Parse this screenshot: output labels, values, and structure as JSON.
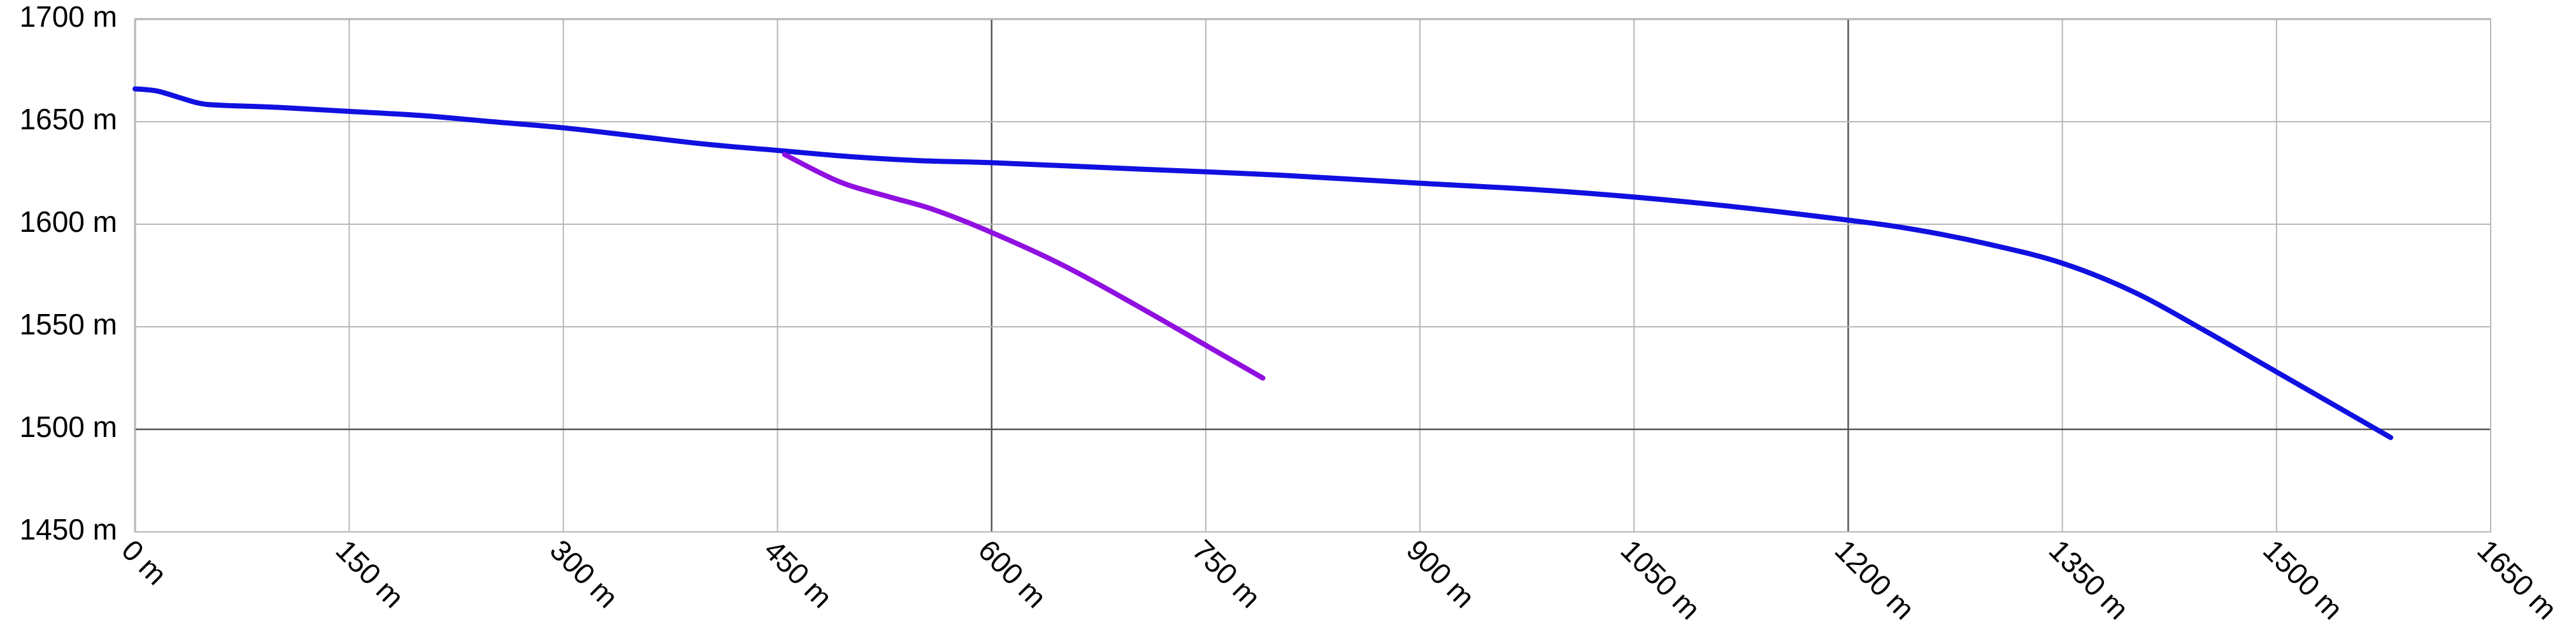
{
  "chart_data": {
    "type": "line",
    "title": "",
    "xlabel": "",
    "ylabel": "",
    "xlim": [
      0,
      1650
    ],
    "ylim": [
      1450,
      1700
    ],
    "grid": true,
    "legend": "none",
    "x_ticks": [
      0,
      150,
      300,
      450,
      600,
      750,
      900,
      1050,
      1200,
      1350,
      1500,
      1650
    ],
    "x_tick_labels": [
      "0 m",
      "150 m",
      "300 m",
      "450 m",
      "600 m",
      "750 m",
      "900 m",
      "1050 m",
      "1200 m",
      "1350 m",
      "1500 m",
      "1650 m"
    ],
    "y_ticks": [
      1450,
      1500,
      1550,
      1600,
      1650,
      1700
    ],
    "y_tick_labels": [
      "1450 m",
      "1500 m",
      "1550 m",
      "1600 m",
      "1650 m",
      "1700 m"
    ],
    "series": [
      {
        "color": "#1010e0",
        "points": [
          [
            0,
            1666
          ],
          [
            15,
            1665
          ],
          [
            30,
            1662
          ],
          [
            45,
            1659
          ],
          [
            60,
            1658
          ],
          [
            100,
            1657
          ],
          [
            150,
            1655
          ],
          [
            200,
            1653
          ],
          [
            250,
            1650
          ],
          [
            300,
            1647
          ],
          [
            350,
            1643
          ],
          [
            400,
            1639
          ],
          [
            450,
            1636
          ],
          [
            500,
            1633
          ],
          [
            550,
            1631
          ],
          [
            600,
            1630
          ],
          [
            700,
            1627
          ],
          [
            800,
            1624
          ],
          [
            900,
            1620
          ],
          [
            1000,
            1616
          ],
          [
            1100,
            1610
          ],
          [
            1200,
            1602
          ],
          [
            1250,
            1597
          ],
          [
            1300,
            1590
          ],
          [
            1350,
            1581
          ],
          [
            1400,
            1567
          ],
          [
            1450,
            1548
          ],
          [
            1500,
            1528
          ],
          [
            1550,
            1508
          ],
          [
            1580,
            1496
          ]
        ]
      },
      {
        "color": "#9010e0",
        "points": [
          [
            455,
            1634
          ],
          [
            480,
            1625
          ],
          [
            500,
            1619
          ],
          [
            530,
            1613
          ],
          [
            560,
            1607
          ],
          [
            600,
            1596
          ],
          [
            650,
            1580
          ],
          [
            700,
            1561
          ],
          [
            750,
            1541
          ],
          [
            790,
            1525
          ]
        ]
      }
    ]
  }
}
